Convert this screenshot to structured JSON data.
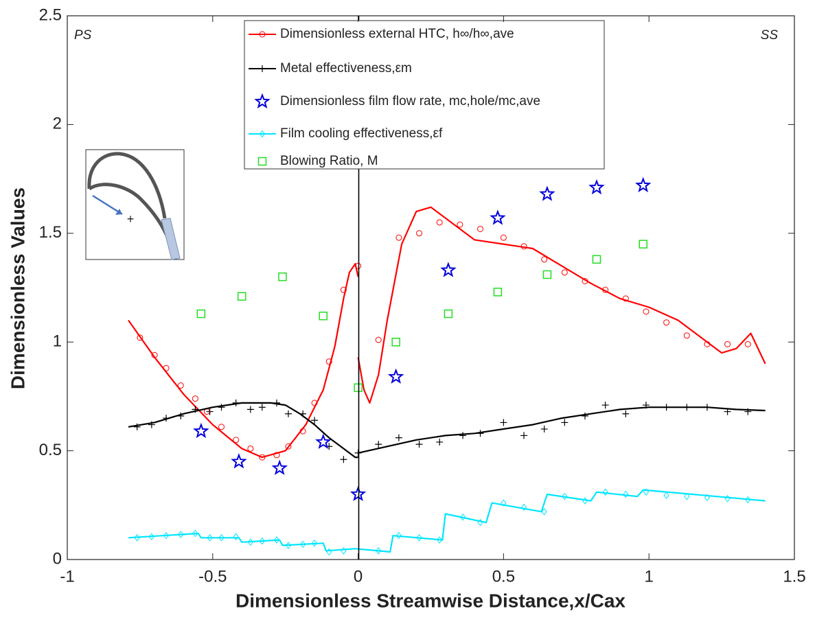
{
  "chart_data": {
    "type": "line",
    "x_label": "Dimensionless Streamwise Distance,x/Cax",
    "y_label": "Dimensionless Values",
    "annotations": [
      "PS",
      "SS"
    ],
    "xlim": [
      -1,
      1.5
    ],
    "xticks": [
      -1,
      -0.5,
      0,
      0.5,
      1,
      1.5
    ],
    "ylim": [
      0,
      2.5
    ],
    "yticks": [
      0,
      0.5,
      1,
      1.5,
      2,
      2.5
    ],
    "grid": false,
    "series": [
      {
        "name": "Dimensionless external HTC, h∞/h∞,ave",
        "color": "#ff0000",
        "marker": "circle",
        "line": {
          "x": [
            -0.79,
            -0.7,
            -0.6,
            -0.5,
            -0.4,
            -0.33,
            -0.25,
            -0.18,
            -0.12,
            -0.08,
            -0.05,
            -0.03,
            -0.01,
            0,
            0,
            0,
            0.02,
            0.04,
            0.07,
            0.1,
            0.15,
            0.2,
            0.25,
            0.3,
            0.4,
            0.5,
            0.6,
            0.7,
            0.8,
            0.9,
            1.0,
            1.1,
            1.2,
            1.25,
            1.3,
            1.35,
            1.4
          ],
          "values": [
            1.1,
            0.93,
            0.76,
            0.62,
            0.51,
            0.47,
            0.5,
            0.62,
            0.78,
            0.98,
            1.2,
            1.32,
            1.36,
            1.3,
            null,
            0.93,
            0.78,
            0.72,
            0.85,
            1.1,
            1.45,
            1.6,
            1.62,
            1.57,
            1.47,
            1.45,
            1.43,
            1.35,
            1.27,
            1.2,
            1.16,
            1.1,
            1.0,
            0.95,
            0.97,
            1.04,
            0.9
          ]
        },
        "points": {
          "x": [
            -0.75,
            -0.7,
            -0.66,
            -0.61,
            -0.56,
            -0.52,
            -0.47,
            -0.42,
            -0.37,
            -0.33,
            -0.28,
            -0.24,
            -0.19,
            -0.15,
            -0.1,
            -0.05,
            0,
            0.07,
            0.14,
            0.21,
            0.28,
            0.35,
            0.42,
            0.5,
            0.57,
            0.64,
            0.71,
            0.78,
            0.85,
            0.92,
            0.99,
            1.06,
            1.13,
            1.2,
            1.27,
            1.34
          ],
          "values": [
            1.02,
            0.94,
            0.88,
            0.8,
            0.74,
            0.68,
            0.61,
            0.55,
            0.51,
            0.47,
            0.48,
            0.52,
            0.59,
            0.72,
            0.91,
            1.24,
            1.35,
            1.01,
            1.48,
            1.5,
            1.55,
            1.54,
            1.52,
            1.48,
            1.44,
            1.38,
            1.32,
            1.28,
            1.24,
            1.2,
            1.14,
            1.09,
            1.03,
            0.99,
            0.99,
            0.99
          ]
        }
      },
      {
        "name": "Metal effectiveness,εm",
        "color": "#000000",
        "marker": "plus",
        "line": {
          "x": [
            -0.79,
            -0.7,
            -0.6,
            -0.5,
            -0.4,
            -0.3,
            -0.25,
            -0.2,
            -0.15,
            -0.1,
            -0.05,
            -0.01,
            0,
            0,
            0,
            0.1,
            0.2,
            0.3,
            0.4,
            0.5,
            0.6,
            0.7,
            0.8,
            0.9,
            1.0,
            1.1,
            1.2,
            1.3,
            1.4
          ],
          "values": [
            0.61,
            0.63,
            0.67,
            0.7,
            0.72,
            0.72,
            0.71,
            0.67,
            0.62,
            0.56,
            0.51,
            0.47,
            0.47,
            null,
            0.49,
            0.52,
            0.55,
            0.57,
            0.58,
            0.6,
            0.62,
            0.65,
            0.67,
            0.69,
            0.7,
            0.7,
            0.7,
            0.69,
            0.685
          ]
        },
        "points": {
          "x": [
            -0.76,
            -0.71,
            -0.66,
            -0.61,
            -0.56,
            -0.51,
            -0.47,
            -0.42,
            -0.37,
            -0.33,
            -0.28,
            -0.24,
            -0.19,
            -0.15,
            -0.1,
            -0.05,
            0,
            0.07,
            0.14,
            0.21,
            0.28,
            0.36,
            0.42,
            0.5,
            0.57,
            0.64,
            0.71,
            0.78,
            0.85,
            0.92,
            0.99,
            1.06,
            1.13,
            1.2,
            1.27,
            1.34
          ],
          "values": [
            0.61,
            0.62,
            0.65,
            0.66,
            0.69,
            0.68,
            0.7,
            0.72,
            0.69,
            0.7,
            0.72,
            0.67,
            0.67,
            0.64,
            0.52,
            0.46,
            0.49,
            0.53,
            0.56,
            0.53,
            0.54,
            0.57,
            0.58,
            0.63,
            0.57,
            0.6,
            0.63,
            0.66,
            0.71,
            0.67,
            0.71,
            0.7,
            0.7,
            0.7,
            0.68,
            0.68
          ]
        }
      },
      {
        "name": "Dimensionless film flow rate, mc,hole/mc,ave",
        "color": "#0000dd",
        "marker": "star",
        "points": {
          "x": [
            -0.54,
            -0.41,
            -0.27,
            -0.12,
            0,
            0.13,
            0.31,
            0.48,
            0.65,
            0.82,
            0.98
          ],
          "values": [
            0.59,
            0.45,
            0.42,
            0.54,
            0.3,
            0.84,
            1.33,
            1.57,
            1.68,
            1.71,
            1.72
          ]
        }
      },
      {
        "name": "Film cooling effectiveness,εf",
        "color": "#00e5ff",
        "marker": "diamond",
        "line": {
          "x": [
            -0.79,
            -0.55,
            -0.54,
            -0.41,
            -0.4,
            -0.27,
            -0.26,
            -0.12,
            -0.11,
            -0.01,
            0.11,
            0.12,
            0.29,
            0.3,
            0.44,
            0.46,
            0.63,
            0.65,
            0.8,
            0.82,
            0.96,
            0.98,
            1.4
          ],
          "values": [
            0.1,
            0.12,
            0.1,
            0.1,
            0.08,
            0.09,
            0.065,
            0.075,
            0.04,
            0.05,
            0.035,
            0.11,
            0.09,
            0.21,
            0.17,
            0.26,
            0.22,
            0.3,
            0.27,
            0.31,
            0.29,
            0.32,
            0.27
          ]
        },
        "points": {
          "x": [
            -0.76,
            -0.71,
            -0.66,
            -0.61,
            -0.56,
            -0.51,
            -0.47,
            -0.42,
            -0.37,
            -0.33,
            -0.28,
            -0.24,
            -0.19,
            -0.15,
            -0.1,
            -0.05,
            0.07,
            0.14,
            0.21,
            0.28,
            0.36,
            0.42,
            0.5,
            0.57,
            0.64,
            0.71,
            0.78,
            0.85,
            0.92,
            0.99,
            1.06,
            1.13,
            1.2,
            1.27,
            1.34
          ],
          "values": [
            0.1,
            0.105,
            0.11,
            0.115,
            0.12,
            0.1,
            0.1,
            0.105,
            0.08,
            0.085,
            0.09,
            0.065,
            0.07,
            0.075,
            0.035,
            0.04,
            0.04,
            0.11,
            0.1,
            0.09,
            0.195,
            0.17,
            0.26,
            0.24,
            0.22,
            0.29,
            0.27,
            0.31,
            0.3,
            0.31,
            0.295,
            0.29,
            0.285,
            0.28,
            0.275
          ]
        }
      },
      {
        "name": "Blowing Ratio, M",
        "color": "#22dd22",
        "marker": "square",
        "points": {
          "x": [
            -0.54,
            -0.4,
            -0.26,
            -0.12,
            0,
            0.13,
            0.31,
            0.48,
            0.65,
            0.82,
            0.98
          ],
          "values": [
            1.13,
            1.21,
            1.3,
            1.12,
            0.79,
            1.0,
            1.13,
            1.23,
            1.31,
            1.38,
            1.45
          ]
        }
      }
    ]
  }
}
